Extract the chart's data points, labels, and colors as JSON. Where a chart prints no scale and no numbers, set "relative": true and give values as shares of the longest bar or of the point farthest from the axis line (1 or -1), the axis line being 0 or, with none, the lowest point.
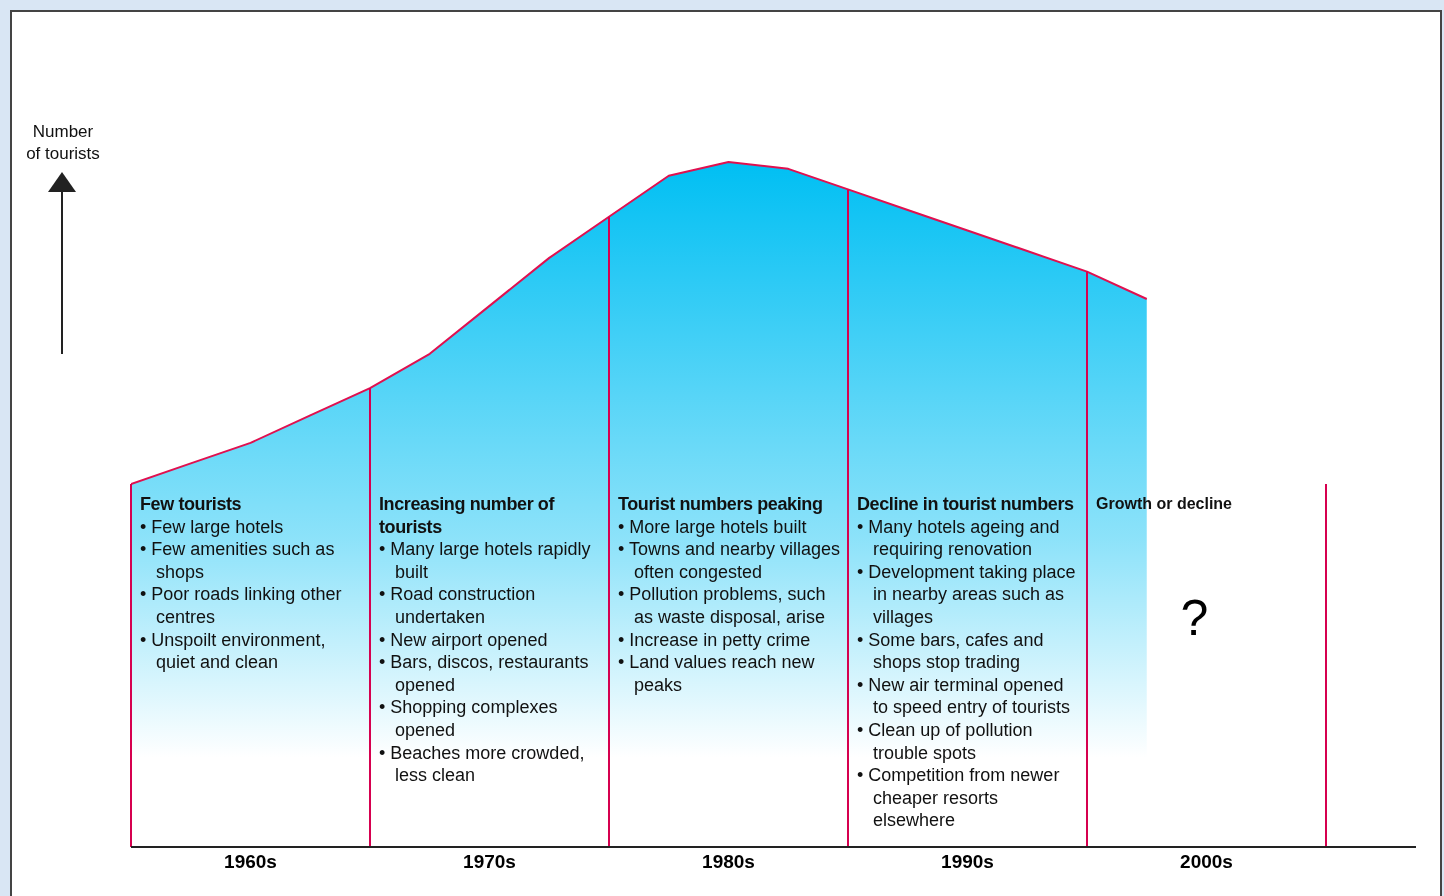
{
  "chart_data": {
    "type": "area",
    "relative": true,
    "ylabel": "Number of tourists",
    "categories": [
      null,
      null,
      "1960s",
      null,
      null,
      null,
      "1970s",
      null,
      null,
      null,
      "1980s",
      null,
      null,
      null,
      "1990s",
      null,
      null,
      null,
      "2000s",
      null,
      null,
      null
    ],
    "series": [
      {
        "color": "#00bff3",
        "values": [
          0.53,
          0.56,
          0.59,
          0.63,
          0.67,
          0.72,
          0.79,
          0.86,
          0.92,
          0.98,
          1,
          0.99,
          0.96,
          0.93,
          0.9,
          0.87,
          0.84,
          0.8,
          null,
          null,
          null,
          null
        ]
      }
    ],
    "annotations": [
      "Few tourists\n• Few large hotels\n• Few amenities such as shops\n• Poor roads linking other centres\n• Unspoilt environment, quiet and clean",
      "Increasing number of tourists\n• Many large hotels rapidly built\n• Road construction undertaken\n• New airport opened\n• Bars, discos, restaurants opened\n• Shopping complexes opened\n• Beaches more crowded, less clean",
      "Tourist numbers peaking\n• More large hotels built\n• Towns and nearby villages often congested\n• Pollution problems, such as waste disposal, arise\n• Increase in petty crime\n• Land values reach new peaks",
      "Decline in tourist numbers\n• Many hotels ageing and requiring renovation\n• Development taking place in nearby areas such as villages\n• Some bars, cafes and shops stop trading\n• New air terminal opened to speed entry of tourists\n• Clean up of pollution trouble spots\n• Competition from newer cheaper resorts elsewhere",
      "Growth or decline",
      "?"
    ],
    "grid": "x",
    "legend": false
  }
}
